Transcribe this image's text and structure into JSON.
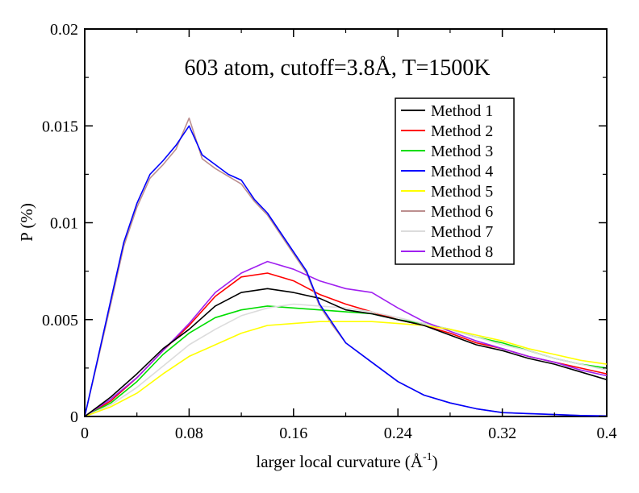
{
  "chart_data": {
    "type": "line",
    "title": "603 atom, cutoff=3.8Å, T=1500K",
    "xlabel": {
      "main": "larger local curvature (Å",
      "sup": "-1",
      "close": ")"
    },
    "ylabel": "P (%)",
    "xlim": [
      0,
      0.4
    ],
    "ylim": [
      0,
      0.02
    ],
    "xticks": [
      {
        "value": 0,
        "label": "0"
      },
      {
        "value": 0.08,
        "label": "0.08"
      },
      {
        "value": 0.16,
        "label": "0.16"
      },
      {
        "value": 0.24,
        "label": "0.24"
      },
      {
        "value": 0.32,
        "label": "0.32"
      },
      {
        "value": 0.4,
        "label": "0.4"
      }
    ],
    "yticks": [
      {
        "value": 0,
        "label": "0"
      },
      {
        "value": 0.005,
        "label": "0.005"
      },
      {
        "value": 0.01,
        "label": "0.01"
      },
      {
        "value": 0.015,
        "label": "0.015"
      },
      {
        "value": 0.02,
        "label": "0.02"
      }
    ],
    "grid": false,
    "legend_position": "top-right",
    "series": [
      {
        "name": "Method 1",
        "color": "#000000",
        "x": [
          0,
          0.02,
          0.04,
          0.06,
          0.08,
          0.1,
          0.12,
          0.14,
          0.16,
          0.18,
          0.2,
          0.22,
          0.24,
          0.26,
          0.28,
          0.3,
          0.32,
          0.34,
          0.36,
          0.38,
          0.4
        ],
        "y": [
          0,
          0.001,
          0.0022,
          0.0035,
          0.0045,
          0.0057,
          0.0064,
          0.0066,
          0.0064,
          0.0061,
          0.0055,
          0.0053,
          0.005,
          0.0047,
          0.0042,
          0.0037,
          0.0034,
          0.003,
          0.0027,
          0.0023,
          0.0019
        ]
      },
      {
        "name": "Method 2",
        "color": "#ff0000",
        "x": [
          0,
          0.02,
          0.04,
          0.06,
          0.08,
          0.1,
          0.12,
          0.14,
          0.16,
          0.18,
          0.2,
          0.22,
          0.24,
          0.26,
          0.28,
          0.3,
          0.32,
          0.34,
          0.36,
          0.38,
          0.4
        ],
        "y": [
          0,
          0.0008,
          0.002,
          0.0034,
          0.0047,
          0.0062,
          0.0072,
          0.0074,
          0.007,
          0.0063,
          0.0058,
          0.0054,
          0.005,
          0.0047,
          0.0043,
          0.0038,
          0.0035,
          0.0031,
          0.0028,
          0.0025,
          0.0022
        ]
      },
      {
        "name": "Method 3",
        "color": "#00dd00",
        "x": [
          0,
          0.02,
          0.04,
          0.06,
          0.08,
          0.1,
          0.12,
          0.14,
          0.16,
          0.18,
          0.2,
          0.22,
          0.24,
          0.26,
          0.28,
          0.3,
          0.32,
          0.34,
          0.36,
          0.38,
          0.4
        ],
        "y": [
          0,
          0.0007,
          0.0018,
          0.0032,
          0.0043,
          0.0051,
          0.0055,
          0.0057,
          0.0056,
          0.0055,
          0.0054,
          0.0053,
          0.005,
          0.0048,
          0.0045,
          0.0041,
          0.0038,
          0.0034,
          0.003,
          0.0027,
          0.0025
        ]
      },
      {
        "name": "Method 4",
        "color": "#0000ff",
        "x": [
          0,
          0.01,
          0.02,
          0.03,
          0.04,
          0.05,
          0.06,
          0.07,
          0.08,
          0.09,
          0.1,
          0.11,
          0.12,
          0.13,
          0.14,
          0.15,
          0.16,
          0.17,
          0.18,
          0.19,
          0.2,
          0.22,
          0.24,
          0.26,
          0.28,
          0.3,
          0.32,
          0.34,
          0.36,
          0.38,
          0.4
        ],
        "y": [
          0,
          0.003,
          0.006,
          0.009,
          0.011,
          0.0125,
          0.0132,
          0.014,
          0.015,
          0.0135,
          0.013,
          0.0125,
          0.0122,
          0.0112,
          0.0105,
          0.0095,
          0.0085,
          0.0075,
          0.0058,
          0.0048,
          0.0038,
          0.0028,
          0.0018,
          0.0011,
          0.0007,
          0.0004,
          0.0002,
          0.00015,
          0.0001,
          5e-05,
          3e-05
        ]
      },
      {
        "name": "Method 5",
        "color": "#ffff00",
        "x": [
          0,
          0.02,
          0.04,
          0.06,
          0.08,
          0.1,
          0.12,
          0.14,
          0.16,
          0.18,
          0.2,
          0.22,
          0.24,
          0.26,
          0.28,
          0.3,
          0.32,
          0.34,
          0.36,
          0.38,
          0.4
        ],
        "y": [
          0,
          0.0005,
          0.0012,
          0.0022,
          0.0031,
          0.0037,
          0.0043,
          0.0047,
          0.0048,
          0.0049,
          0.0049,
          0.0049,
          0.0048,
          0.0047,
          0.0045,
          0.0042,
          0.0039,
          0.0035,
          0.0032,
          0.0029,
          0.0027
        ]
      },
      {
        "name": "Method 6",
        "color": "#bc8f8f",
        "x": [
          0,
          0.01,
          0.02,
          0.03,
          0.04,
          0.05,
          0.06,
          0.07,
          0.08,
          0.09,
          0.1,
          0.11,
          0.12,
          0.13,
          0.14,
          0.15,
          0.16,
          0.17,
          0.18,
          0.19,
          0.2,
          0.22,
          0.24,
          0.26,
          0.28,
          0.3,
          0.32,
          0.34,
          0.36,
          0.38,
          0.4
        ],
        "y": [
          0,
          0.0029,
          0.0058,
          0.0088,
          0.0108,
          0.0123,
          0.013,
          0.0138,
          0.0154,
          0.0133,
          0.0128,
          0.0124,
          0.012,
          0.0111,
          0.0104,
          0.0094,
          0.0084,
          0.0074,
          0.0057,
          0.0047,
          0.0038,
          0.0028,
          0.0018,
          0.0011,
          0.0007,
          0.0004,
          0.0002,
          0.00015,
          0.0001,
          5e-05,
          3e-05
        ]
      },
      {
        "name": "Method 7",
        "color": "#dcdcdc",
        "x": [
          0,
          0.02,
          0.04,
          0.06,
          0.08,
          0.1,
          0.12,
          0.14,
          0.16,
          0.18,
          0.2,
          0.22,
          0.24,
          0.26,
          0.28,
          0.3,
          0.32,
          0.34,
          0.36,
          0.38,
          0.4
        ],
        "y": [
          0,
          0.0006,
          0.0015,
          0.0026,
          0.0037,
          0.0045,
          0.0052,
          0.0056,
          0.0058,
          0.0057,
          0.0056,
          0.0054,
          0.0051,
          0.0048,
          0.0045,
          0.0041,
          0.0037,
          0.0034,
          0.003,
          0.0027,
          0.0024
        ]
      },
      {
        "name": "Method 8",
        "color": "#a020f0",
        "x": [
          0,
          0.02,
          0.04,
          0.06,
          0.08,
          0.1,
          0.12,
          0.14,
          0.16,
          0.18,
          0.2,
          0.22,
          0.24,
          0.26,
          0.28,
          0.3,
          0.32,
          0.34,
          0.36,
          0.38,
          0.4
        ],
        "y": [
          0,
          0.0009,
          0.002,
          0.0034,
          0.0048,
          0.0064,
          0.0074,
          0.008,
          0.0076,
          0.007,
          0.0066,
          0.0064,
          0.0056,
          0.0049,
          0.0044,
          0.0039,
          0.0035,
          0.0031,
          0.0028,
          0.0024,
          0.0021
        ]
      }
    ]
  }
}
